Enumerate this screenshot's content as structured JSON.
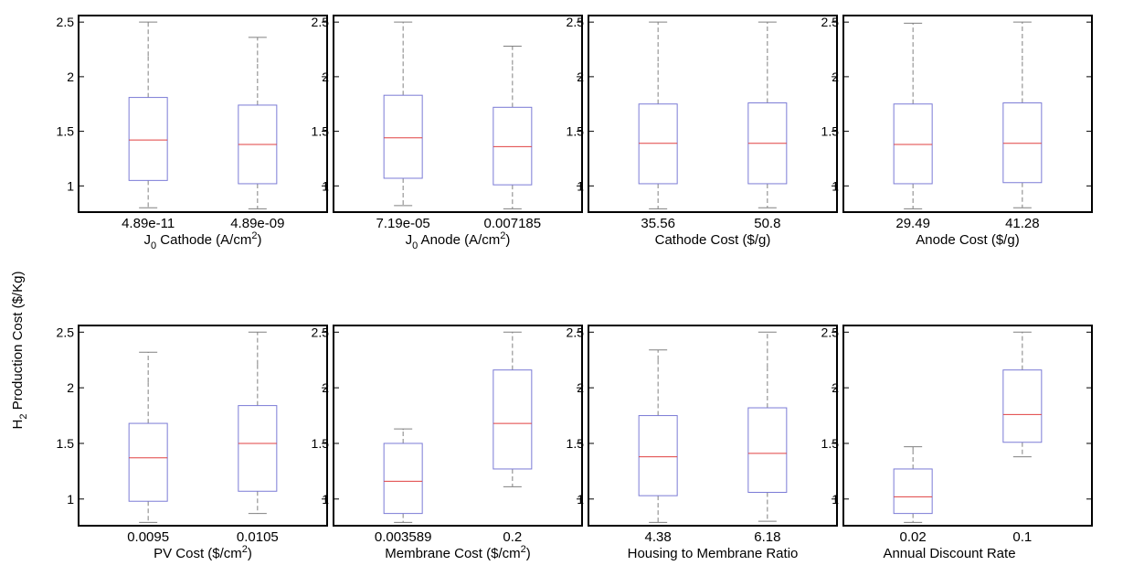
{
  "ylabel": "H2 Production Cost ($/Kg)",
  "ylabel_sub": "2",
  "chart_data": [
    {
      "type": "box",
      "xlabel": "J0 Cathode (A/cm2)",
      "xlabel_parts": [
        "J",
        "0",
        " Cathode (A/cm",
        "2",
        ")"
      ],
      "categories": [
        "4.89e-11",
        "4.89e-09"
      ],
      "yticks": [
        "1",
        "1.5",
        "2",
        "2.5"
      ],
      "ylim": [
        0.76,
        2.56
      ],
      "boxes": [
        {
          "whislo": 0.8,
          "q1": 1.05,
          "med": 1.42,
          "q3": 1.81,
          "whishi": 2.19,
          "maxcap": 2.5
        },
        {
          "whislo": 0.79,
          "q1": 1.02,
          "med": 1.38,
          "q3": 1.74,
          "whishi": 2.13,
          "maxcap": 2.36
        }
      ]
    },
    {
      "type": "box",
      "xlabel": "J0 Anode (A/cm2)",
      "xlabel_parts": [
        "J",
        "0",
        " Anode (A/cm",
        "2",
        ")"
      ],
      "categories": [
        "7.19e-05",
        "0.007185"
      ],
      "yticks": [
        "1",
        "1.5",
        "2",
        "2.5"
      ],
      "ylim": [
        0.76,
        2.56
      ],
      "boxes": [
        {
          "whislo": 0.82,
          "q1": 1.07,
          "med": 1.44,
          "q3": 1.83,
          "whishi": 2.22,
          "maxcap": 2.5
        },
        {
          "whislo": 0.79,
          "q1": 1.01,
          "med": 1.36,
          "q3": 1.72,
          "whishi": 2.11,
          "maxcap": 2.28
        }
      ]
    },
    {
      "type": "box",
      "xlabel": "Cathode Cost ($/g)",
      "xlabel_parts": [],
      "categories": [
        "35.56",
        "50.8"
      ],
      "yticks": [
        "1",
        "1.5",
        "2",
        "2.5"
      ],
      "ylim": [
        0.76,
        2.56
      ],
      "boxes": [
        {
          "whislo": 0.79,
          "q1": 1.02,
          "med": 1.39,
          "q3": 1.75,
          "whishi": 2.14,
          "maxcap": 2.5
        },
        {
          "whislo": 0.8,
          "q1": 1.02,
          "med": 1.39,
          "q3": 1.76,
          "whishi": 2.15,
          "maxcap": 2.5
        }
      ]
    },
    {
      "type": "box",
      "xlabel": "Anode Cost ($/g)",
      "xlabel_parts": [],
      "categories": [
        "29.49",
        "41.28"
      ],
      "yticks": [
        "1",
        "1.5",
        "2",
        "2.5"
      ],
      "ylim": [
        0.76,
        2.56
      ],
      "boxes": [
        {
          "whislo": 0.79,
          "q1": 1.02,
          "med": 1.38,
          "q3": 1.75,
          "whishi": 2.14,
          "maxcap": 2.49
        },
        {
          "whislo": 0.8,
          "q1": 1.03,
          "med": 1.39,
          "q3": 1.76,
          "whishi": 2.15,
          "maxcap": 2.5
        }
      ]
    },
    {
      "type": "box",
      "xlabel": "PV Cost ($/cm2)",
      "xlabel_parts": [
        "PV Cost ($/cm",
        "2",
        ")"
      ],
      "categories": [
        "0.0095",
        "0.0105"
      ],
      "yticks": [
        "1",
        "1.5",
        "2",
        "2.5"
      ],
      "ylim": [
        0.76,
        2.56
      ],
      "boxes": [
        {
          "whislo": 0.79,
          "q1": 0.98,
          "med": 1.37,
          "q3": 1.68,
          "whishi": 2.05,
          "maxcap": 2.32
        },
        {
          "whislo": 0.87,
          "q1": 1.07,
          "med": 1.5,
          "q3": 1.84,
          "whishi": 2.21,
          "maxcap": 2.5
        }
      ]
    },
    {
      "type": "box",
      "xlabel": "Membrane Cost ($/cm2)",
      "xlabel_parts": [
        "Membrane Cost ($/cm",
        "2",
        ")"
      ],
      "categories": [
        "0.003589",
        "0.2"
      ],
      "yticks": [
        "1",
        "1.5",
        "2",
        "2.5"
      ],
      "ylim": [
        0.76,
        2.56
      ],
      "boxes": [
        {
          "whislo": 0.79,
          "q1": 0.87,
          "med": 1.16,
          "q3": 1.5,
          "whishi": 1.62,
          "maxcap": 1.63
        },
        {
          "whislo": 1.11,
          "q1": 1.27,
          "med": 1.68,
          "q3": 2.16,
          "whishi": 2.5,
          "maxcap": 2.5
        }
      ]
    },
    {
      "type": "box",
      "xlabel": "Housing to Membrane Ratio",
      "xlabel_parts": [],
      "categories": [
        "4.38",
        "6.18"
      ],
      "yticks": [
        "1",
        "1.5",
        "2",
        "2.5"
      ],
      "ylim": [
        0.76,
        2.56
      ],
      "boxes": [
        {
          "whislo": 0.79,
          "q1": 1.03,
          "med": 1.38,
          "q3": 1.75,
          "whishi": 2.25,
          "maxcap": 2.34
        },
        {
          "whislo": 0.8,
          "q1": 1.06,
          "med": 1.41,
          "q3": 1.82,
          "whishi": 2.18,
          "maxcap": 2.5
        }
      ]
    },
    {
      "type": "box",
      "xlabel": "Annual Discount Rate",
      "xlabel_parts": [],
      "categories": [
        "0.02",
        "0.1"
      ],
      "yticks": [
        "1",
        "1.5",
        "2",
        "2.5"
      ],
      "ylim": [
        0.76,
        2.56
      ],
      "boxes": [
        {
          "whislo": 0.79,
          "q1": 0.87,
          "med": 1.02,
          "q3": 1.27,
          "whishi": 1.43,
          "maxcap": 1.47
        },
        {
          "whislo": 1.38,
          "q1": 1.51,
          "med": 1.76,
          "q3": 2.16,
          "whishi": 2.5,
          "maxcap": 2.5
        }
      ]
    }
  ],
  "colors": {
    "box": "#7b7bd6",
    "median": "#e04040",
    "whisker": "#808080",
    "axis": "#000000"
  }
}
